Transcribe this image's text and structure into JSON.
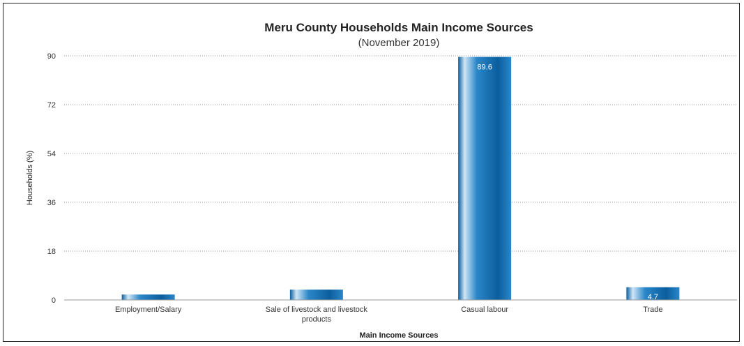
{
  "chart_data": {
    "type": "bar",
    "title": "Meru County Households Main Income Sources",
    "subtitle": "(November 2019)",
    "xlabel": "Main Income Sources",
    "ylabel": "Households (%)",
    "ylim": [
      0,
      90
    ],
    "yticks": [
      0,
      18,
      36,
      54,
      72,
      90
    ],
    "grid": true,
    "categories": [
      [
        "Employment/Salary"
      ],
      [
        "Sale of livestock and livestock",
        "products"
      ],
      [
        "Casual labour"
      ],
      [
        "Trade"
      ]
    ],
    "values": [
      2.0,
      3.8,
      89.6,
      4.7
    ],
    "data_labels": [
      "",
      "",
      "89.6",
      "4.7"
    ],
    "colors": {
      "bar_dark": "#0b5e9e",
      "bar_mid": "#2a86c8",
      "bar_light": "#cfe6f6"
    }
  }
}
